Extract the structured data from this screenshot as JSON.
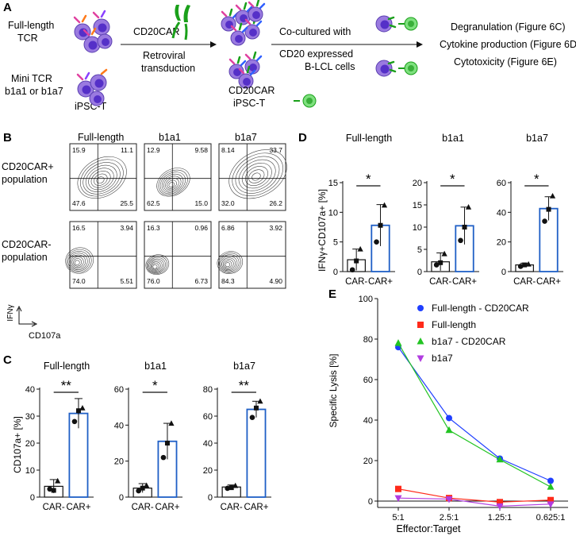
{
  "panelA": {
    "label": "A",
    "fullLength": [
      "Full-length",
      "TCR"
    ],
    "mini": [
      "Mini TCR",
      "b1a1 or b1a7"
    ],
    "ipsc": "iPSC-T",
    "car": "CD20CAR",
    "retro": [
      "Retroviral",
      "transduction"
    ],
    "carIpsc": [
      "CD20CAR",
      "iPSC-T"
    ],
    "cocult": [
      "Co-cultured with",
      "CD20 expressed",
      "B-LCL cells"
    ],
    "outcomes": [
      "Degranulation (Figure 6C)",
      "Cytokine production (Figure 6D)",
      "Cytotoxicity (Figure 6E)"
    ]
  },
  "panelB": {
    "label": "B",
    "cols": [
      "Full-length",
      "b1a1",
      "b1a7"
    ],
    "rows": [
      [
        "CD20CAR+",
        "population"
      ],
      [
        "CD20CAR-",
        "population"
      ]
    ],
    "yAxis": "IFNγ",
    "xAxis": "CD107a",
    "plots": [
      [
        [
          "15.9",
          "11.1",
          "47.6",
          "25.5"
        ],
        [
          "12.9",
          "9.58",
          "62.5",
          "15.0"
        ],
        [
          "8.14",
          "33.7",
          "32.0",
          "26.2"
        ]
      ],
      [
        [
          "16.5",
          "3.94",
          "74.0",
          "5.51"
        ],
        [
          "16.3",
          "0.96",
          "76.0",
          "6.73"
        ],
        [
          "6.86",
          "3.92",
          "84.3",
          "4.90"
        ]
      ]
    ]
  },
  "panelC": {
    "label": "C",
    "yLabel": "CD107a+ [%]",
    "titles": [
      "Full-length",
      "b1a1",
      "b1a7"
    ],
    "sig": [
      "**",
      "*",
      "**"
    ]
  },
  "panelD": {
    "label": "D",
    "yLabel": "IFNγ+CD107a+ [%]",
    "titles": [
      "Full-length",
      "b1a1",
      "b1a7"
    ],
    "sig": [
      "*",
      "*",
      "*"
    ]
  },
  "panelE": {
    "label": "E",
    "yLabel": "Specific Lysis [%]",
    "xLabel": "Effector:Target"
  },
  "colors": {
    "car": "#1f5fc6",
    "blue": "#1f3fff",
    "red": "#ff2a1a",
    "green": "#22c422",
    "magenta": "#b13ce0"
  },
  "chart_data": [
    {
      "type": "bar",
      "title": "Full-length",
      "ylabel": "CD107a+ [%]",
      "categories": [
        "CAR-",
        "CAR+"
      ],
      "values": [
        4,
        31
      ],
      "errors": [
        2.5,
        5.5
      ],
      "points": [
        [
          3,
          2.5,
          6
        ],
        [
          28,
          32,
          33
        ]
      ],
      "ylim": [
        0,
        40
      ],
      "yticks": [
        0,
        10,
        20,
        30,
        40
      ]
    },
    {
      "type": "bar",
      "title": "b1a1",
      "ylabel": "CD107a+ [%]",
      "categories": [
        "CAR-",
        "CAR+"
      ],
      "values": [
        5,
        31
      ],
      "errors": [
        2.5,
        10
      ],
      "points": [
        [
          3.5,
          5,
          6.5
        ],
        [
          22,
          30,
          41
        ]
      ],
      "ylim": [
        0,
        60
      ],
      "yticks": [
        0,
        20,
        40,
        60
      ]
    },
    {
      "type": "bar",
      "title": "b1a7",
      "ylabel": "CD107a+ [%]",
      "categories": [
        "CAR-",
        "CAR+"
      ],
      "values": [
        7.5,
        65
      ],
      "errors": [
        1.5,
        6
      ],
      "points": [
        [
          6.5,
          7,
          8.5
        ],
        [
          59,
          66,
          71
        ]
      ],
      "ylim": [
        0,
        80
      ],
      "yticks": [
        0,
        20,
        40,
        60,
        80
      ]
    },
    {
      "type": "bar",
      "title": "Full-length",
      "ylabel": "IFNγ+CD107a+ [%]",
      "categories": [
        "CAR-",
        "CAR+"
      ],
      "values": [
        2,
        7.8
      ],
      "errors": [
        1.8,
        3.5
      ],
      "points": [
        [
          0.3,
          1.8,
          3.8
        ],
        [
          5,
          7.8,
          11.2
        ]
      ],
      "ylim": [
        0,
        15
      ],
      "yticks": [
        0,
        5,
        10,
        15
      ]
    },
    {
      "type": "bar",
      "title": "b1a1",
      "ylabel": "IFNγ+CD107a+ [%]",
      "categories": [
        "CAR-",
        "CAR+"
      ],
      "values": [
        2.2,
        10.3
      ],
      "errors": [
        2,
        4.2
      ],
      "points": [
        [
          1.5,
          2,
          4
        ],
        [
          7,
          10,
          14.5
        ]
      ],
      "ylim": [
        0,
        20
      ],
      "yticks": [
        0,
        5,
        10,
        15,
        20
      ]
    },
    {
      "type": "bar",
      "title": "b1a7",
      "ylabel": "IFNγ+CD107a+ [%]",
      "categories": [
        "CAR-",
        "CAR+"
      ],
      "values": [
        4.5,
        42.5
      ],
      "errors": [
        1.2,
        8
      ],
      "points": [
        [
          3.5,
          4.5,
          5
        ],
        [
          34,
          42,
          51
        ]
      ],
      "ylim": [
        0,
        60
      ],
      "yticks": [
        0,
        20,
        40,
        60
      ]
    },
    {
      "type": "line",
      "title": "",
      "xlabel": "Effector:Target",
      "ylabel": "Specific Lysis [%]",
      "categories": [
        "5:1",
        "2.5:1",
        "1.25:1",
        "0.625:1"
      ],
      "ylim": [
        0,
        100
      ],
      "yticks": [
        0,
        20,
        40,
        60,
        80,
        100
      ],
      "legend": "top-right",
      "series": [
        {
          "name": "Full-length - CD20CAR",
          "marker": "circle",
          "color": "#1f3fff",
          "values": [
            76,
            41,
            21,
            10
          ]
        },
        {
          "name": "Full-length",
          "marker": "square",
          "color": "#ff2a1a",
          "values": [
            6,
            1.5,
            -0.5,
            0.5
          ]
        },
        {
          "name": "b1a7 - CD20CAR",
          "marker": "triangle-up",
          "color": "#22c422",
          "values": [
            78,
            35,
            20.5,
            7
          ]
        },
        {
          "name": "b1a7",
          "marker": "triangle-down",
          "color": "#b13ce0",
          "values": [
            1.5,
            1,
            -2.5,
            -1.5
          ]
        }
      ]
    }
  ]
}
